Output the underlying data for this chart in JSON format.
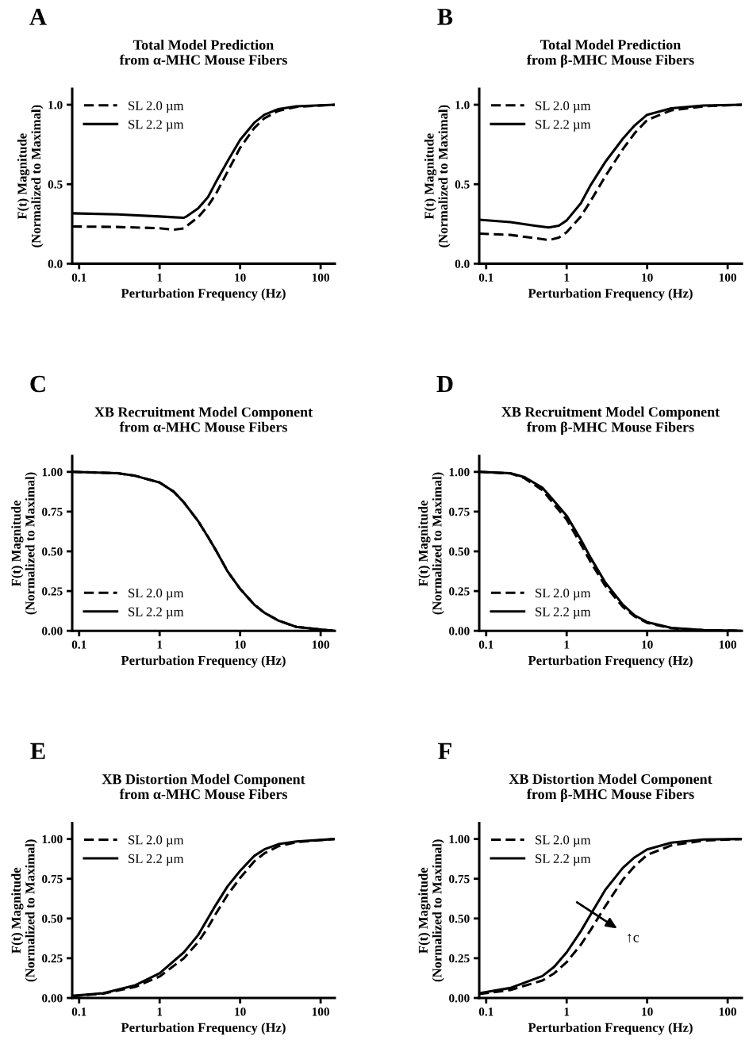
{
  "chart_data": [
    {
      "type": "line",
      "title": "Total Model Prediction\nfrom α-MHC Mouse Fibers",
      "xlabel": "Perturbation Frequency (Hz)",
      "ylabel": "F(t) Magnitude\n(Normalized to Maximal)",
      "log": "x",
      "xlim": [
        0.082,
        150
      ],
      "xticks": [
        0.1,
        1,
        10,
        100
      ],
      "ylim": [
        0,
        1.1
      ],
      "yticks": [
        {
          "value": 0,
          "label": "0.0"
        },
        0.5,
        {
          "value": 1,
          "label": "1.0"
        }
      ],
      "legend": "top left",
      "grid": false,
      "annotations": [
        "A"
      ],
      "x": [
        0.082,
        0.3,
        1,
        1.5,
        2,
        2.2,
        3,
        4,
        5,
        7,
        10,
        15,
        20,
        30,
        50,
        150
      ],
      "series": [
        {
          "name": "SL 2.0 µm",
          "color": "#000000",
          "line_style": "dashed",
          "values": [
            0.234,
            0.231,
            0.223,
            0.214,
            0.222,
            0.239,
            0.292,
            0.364,
            0.439,
            0.58,
            0.729,
            0.854,
            0.915,
            0.962,
            0.987,
            1.0
          ]
        },
        {
          "name": "SL 2.2 µm",
          "color": "#000000",
          "line_style": "solid",
          "values": [
            0.317,
            0.31,
            0.297,
            0.292,
            0.289,
            0.3,
            0.347,
            0.42,
            0.513,
            0.646,
            0.779,
            0.887,
            0.937,
            0.973,
            0.99,
            1.0
          ]
        }
      ]
    },
    {
      "type": "line",
      "title": "Total Model Prediction\nfrom β-MHC Mouse Fibers",
      "xlabel": "Perturbation Frequency (Hz)",
      "ylabel": "F(t) Magnitude\n(Normalized to Maximal)",
      "log": "x",
      "xlim": [
        0.082,
        150
      ],
      "xticks": [
        0.1,
        1,
        10,
        100
      ],
      "ylim": [
        0,
        1.1
      ],
      "yticks": [
        {
          "value": 0,
          "label": "0.0"
        },
        0.5,
        {
          "value": 1,
          "label": "1.0"
        }
      ],
      "legend": "top left",
      "grid": false,
      "annotations": [
        "B"
      ],
      "x": [
        0.082,
        0.2,
        0.4,
        0.6,
        0.8,
        1,
        1.5,
        2,
        3,
        5,
        7,
        10,
        20,
        50,
        150
      ],
      "series": [
        {
          "name": "SL 2.0 µm",
          "color": "#000000",
          "line_style": "dashed",
          "values": [
            0.189,
            0.181,
            0.161,
            0.148,
            0.164,
            0.198,
            0.297,
            0.397,
            0.547,
            0.721,
            0.821,
            0.904,
            0.965,
            0.99,
            1.0
          ]
        },
        {
          "name": "SL 2.2 µm",
          "color": "#000000",
          "line_style": "solid",
          "values": [
            0.276,
            0.261,
            0.239,
            0.228,
            0.239,
            0.272,
            0.38,
            0.497,
            0.638,
            0.787,
            0.87,
            0.937,
            0.978,
            0.995,
            1.0
          ]
        }
      ]
    },
    {
      "type": "line",
      "title": "XB Recruitment Model Component\nfrom α-MHC Mouse Fibers",
      "xlabel": "Perturbation Frequency (Hz)",
      "ylabel": "F(t) Magnitude\n(Normalized to Maximal)",
      "log": "x",
      "xlim": [
        0.082,
        150
      ],
      "xticks": [
        0.1,
        1,
        10,
        100
      ],
      "ylim": [
        0,
        1.1
      ],
      "yticks": [
        {
          "value": 0,
          "label": "0.00"
        },
        {
          "value": 0.25,
          "label": "0.25"
        },
        {
          "value": 0.5,
          "label": "0.50"
        },
        {
          "value": 0.75,
          "label": "0.75"
        },
        {
          "value": 1,
          "label": "1.00"
        }
      ],
      "legend": "bottom left",
      "grid": false,
      "annotations": [
        "C"
      ],
      "x": [
        0.082,
        0.3,
        0.5,
        1,
        1.5,
        2,
        3,
        4,
        5,
        7,
        10,
        15,
        20,
        30,
        50,
        100,
        150
      ],
      "series": [
        {
          "name": "SL 2.0 µm",
          "color": "#000000",
          "line_style": "dashed",
          "values": [
            1.0,
            0.992,
            0.975,
            0.933,
            0.875,
            0.808,
            0.691,
            0.59,
            0.507,
            0.373,
            0.264,
            0.164,
            0.114,
            0.064,
            0.025,
            0.008,
            0.0
          ]
        },
        {
          "name": "SL 2.2 µm",
          "color": "#000000",
          "line_style": "solid",
          "values": [
            1.0,
            0.992,
            0.975,
            0.933,
            0.875,
            0.808,
            0.691,
            0.59,
            0.507,
            0.373,
            0.264,
            0.164,
            0.114,
            0.064,
            0.025,
            0.008,
            0.0
          ]
        }
      ]
    },
    {
      "type": "line",
      "title": "XB Recruitment Model Component\nfrom β-MHC Mouse Fibers",
      "xlabel": "Perturbation Frequency (Hz)",
      "ylabel": "F(t) Magnitude\n(Normalized to Maximal)",
      "log": "x",
      "xlim": [
        0.082,
        150
      ],
      "xticks": [
        0.1,
        1,
        10,
        100
      ],
      "ylim": [
        0,
        1.1
      ],
      "yticks": [
        {
          "value": 0,
          "label": "0.00"
        },
        {
          "value": 0.25,
          "label": "0.25"
        },
        {
          "value": 0.5,
          "label": "0.50"
        },
        {
          "value": 0.75,
          "label": "0.75"
        },
        {
          "value": 1,
          "label": "1.00"
        }
      ],
      "legend": "bottom left",
      "grid": false,
      "annotations": [
        "D"
      ],
      "x": [
        0.082,
        0.2,
        0.3,
        0.5,
        0.7,
        1,
        1.5,
        2,
        3,
        5,
        7,
        10,
        20,
        50,
        150
      ],
      "series": [
        {
          "name": "SL 2.0 µm",
          "color": "#000000",
          "line_style": "dashed",
          "values": [
            1.0,
            0.99,
            0.96,
            0.885,
            0.795,
            0.7,
            0.545,
            0.43,
            0.285,
            0.15,
            0.09,
            0.05,
            0.016,
            0.004,
            0.0
          ]
        },
        {
          "name": "SL 2.2 µm",
          "color": "#000000",
          "line_style": "solid",
          "values": [
            1.0,
            0.992,
            0.967,
            0.9,
            0.816,
            0.724,
            0.574,
            0.457,
            0.306,
            0.164,
            0.097,
            0.055,
            0.018,
            0.005,
            0.0
          ]
        }
      ]
    },
    {
      "type": "line",
      "title": "XB Distortion Model Component\nfrom α-MHC Mouse Fibers",
      "xlabel": "Perturbation Frequency (Hz)",
      "ylabel": "F(t) Magnitude\n(Normalized to Maximal)",
      "log": "x",
      "xlim": [
        0.082,
        150
      ],
      "xticks": [
        0.1,
        1,
        10,
        100
      ],
      "ylim": [
        0,
        1.1
      ],
      "yticks": [
        {
          "value": 0,
          "label": "0.00"
        },
        {
          "value": 0.25,
          "label": "0.25"
        },
        {
          "value": 0.5,
          "label": "0.50"
        },
        {
          "value": 0.75,
          "label": "0.75"
        },
        {
          "value": 1,
          "label": "1.00"
        }
      ],
      "legend": "top left",
      "grid": false,
      "annotations": [
        "E"
      ],
      "x": [
        0.082,
        0.2,
        0.5,
        1,
        2,
        3,
        4,
        5,
        7,
        10,
        15,
        20,
        30,
        50,
        150
      ],
      "series": [
        {
          "name": "SL 2.0 µm",
          "color": "#000000",
          "line_style": "dashed",
          "values": [
            0.011,
            0.027,
            0.07,
            0.135,
            0.25,
            0.35,
            0.445,
            0.53,
            0.65,
            0.755,
            0.86,
            0.91,
            0.955,
            0.98,
            1.0
          ]
        },
        {
          "name": "SL 2.2 µm",
          "color": "#000000",
          "line_style": "solid",
          "values": [
            0.013,
            0.03,
            0.08,
            0.155,
            0.287,
            0.395,
            0.503,
            0.586,
            0.703,
            0.8,
            0.894,
            0.935,
            0.968,
            0.985,
            1.0
          ]
        }
      ]
    },
    {
      "type": "line",
      "title": "XB Distortion Model Component\nfrom β-MHC Mouse Fibers",
      "xlabel": "Perturbation Frequency (Hz)",
      "ylabel": "F(t) Magnitude\n(Normalized to Maximal)",
      "log": "x",
      "xlim": [
        0.082,
        150
      ],
      "xticks": [
        0.1,
        1,
        10,
        100
      ],
      "ylim": [
        0,
        1.1
      ],
      "yticks": [
        {
          "value": 0,
          "label": "0.00"
        },
        {
          "value": 0.25,
          "label": "0.25"
        },
        {
          "value": 0.5,
          "label": "0.50"
        },
        {
          "value": 0.75,
          "label": "0.75"
        },
        {
          "value": 1,
          "label": "1.00"
        }
      ],
      "legend": "top left",
      "grid": false,
      "annotations": [
        "F",
        "↑c"
      ],
      "x": [
        0.082,
        0.2,
        0.5,
        0.7,
        1,
        1.5,
        2,
        3,
        5,
        7,
        10,
        20,
        50,
        150
      ],
      "series": [
        {
          "name": "SL 2.0 µm",
          "color": "#000000",
          "line_style": "dashed",
          "values": [
            0.025,
            0.05,
            0.11,
            0.155,
            0.225,
            0.335,
            0.43,
            0.575,
            0.745,
            0.83,
            0.9,
            0.96,
            0.99,
            1.0
          ]
        },
        {
          "name": "SL 2.2 µm",
          "color": "#000000",
          "line_style": "solid",
          "values": [
            0.03,
            0.063,
            0.138,
            0.196,
            0.287,
            0.42,
            0.528,
            0.678,
            0.819,
            0.885,
            0.935,
            0.977,
            0.997,
            1.0
          ]
        }
      ]
    }
  ]
}
